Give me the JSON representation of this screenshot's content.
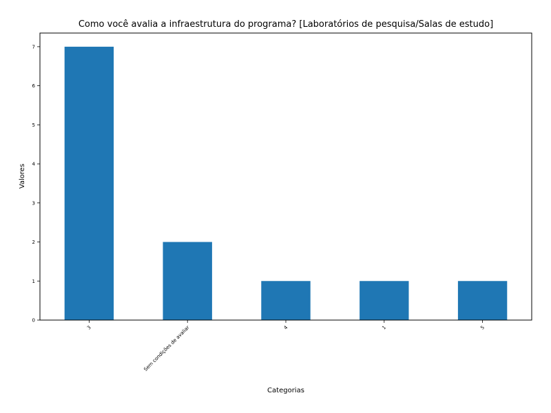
{
  "chart_data": {
    "type": "bar",
    "title": "Como você avalia a infraestrutura do programa? [Laboratórios de pesquisa/Salas de estudo]",
    "xlabel": "Categorias",
    "ylabel": "Valores",
    "categories": [
      "3",
      "Sem condições de avaliar",
      "4",
      "1",
      "5"
    ],
    "values": [
      7,
      2,
      1,
      1,
      1
    ],
    "ylim": [
      0,
      7.35
    ],
    "yticks": [
      0,
      1,
      2,
      3,
      4,
      5,
      6,
      7
    ],
    "grid": false,
    "legend": "none",
    "bar_color": "#1f77b4"
  }
}
